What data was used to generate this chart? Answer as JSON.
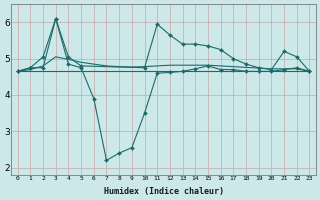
{
  "xlabel": "Humidex (Indice chaleur)",
  "background_color": "#cce8e8",
  "grid_color": "#b8d8d8",
  "line_color": "#1a6b6b",
  "xlim": [
    -0.5,
    23.5
  ],
  "ylim": [
    1.8,
    6.5
  ],
  "yticks": [
    2,
    3,
    4,
    5,
    6
  ],
  "xticks": [
    0,
    1,
    2,
    3,
    4,
    5,
    6,
    7,
    8,
    9,
    10,
    11,
    12,
    13,
    14,
    15,
    16,
    17,
    18,
    19,
    20,
    21,
    22,
    23
  ],
  "series": [
    {
      "x": [
        0,
        1,
        2,
        3,
        4,
        5,
        6,
        7,
        8,
        9,
        10,
        11,
        12,
        13,
        14,
        15,
        16,
        17,
        18,
        19,
        20,
        21,
        22,
        23
      ],
      "y": [
        4.65,
        4.75,
        4.75,
        6.1,
        4.85,
        4.75,
        3.9,
        2.2,
        2.4,
        2.55,
        3.5,
        4.6,
        4.62,
        4.65,
        4.72,
        4.8,
        4.7,
        4.7,
        4.65,
        4.65,
        4.65,
        4.7,
        4.75,
        4.65
      ],
      "marker": true
    },
    {
      "x": [
        0,
        1,
        2,
        3,
        4,
        5,
        6,
        7,
        8,
        9,
        10,
        11,
        12,
        13,
        14,
        15,
        16,
        17,
        18,
        19,
        20,
        21,
        22,
        23
      ],
      "y": [
        4.65,
        4.65,
        4.65,
        4.65,
        4.65,
        4.65,
        4.65,
        4.65,
        4.65,
        4.65,
        4.65,
        4.65,
        4.65,
        4.65,
        4.65,
        4.65,
        4.65,
        4.65,
        4.65,
        4.65,
        4.65,
        4.65,
        4.65,
        4.65
      ],
      "marker": false
    },
    {
      "x": [
        0,
        1,
        2,
        3,
        4,
        5,
        10,
        11,
        12,
        13,
        14,
        15,
        16,
        17,
        18,
        19,
        20,
        21,
        22,
        23
      ],
      "y": [
        4.65,
        4.75,
        5.05,
        6.1,
        5.05,
        4.8,
        4.75,
        5.95,
        5.65,
        5.4,
        5.4,
        5.35,
        5.25,
        5.0,
        4.85,
        4.75,
        4.7,
        5.2,
        5.05,
        4.65
      ],
      "marker": true
    },
    {
      "x": [
        0,
        1,
        2,
        3,
        4,
        5,
        6,
        7,
        8,
        9,
        10,
        11,
        12,
        13,
        14,
        15,
        16,
        17,
        18,
        19,
        20,
        21,
        22,
        23
      ],
      "y": [
        4.65,
        4.7,
        4.8,
        5.05,
        4.98,
        4.9,
        4.85,
        4.8,
        4.78,
        4.77,
        4.78,
        4.8,
        4.82,
        4.82,
        4.82,
        4.82,
        4.8,
        4.78,
        4.76,
        4.74,
        4.72,
        4.72,
        4.72,
        4.65
      ],
      "marker": false
    }
  ]
}
